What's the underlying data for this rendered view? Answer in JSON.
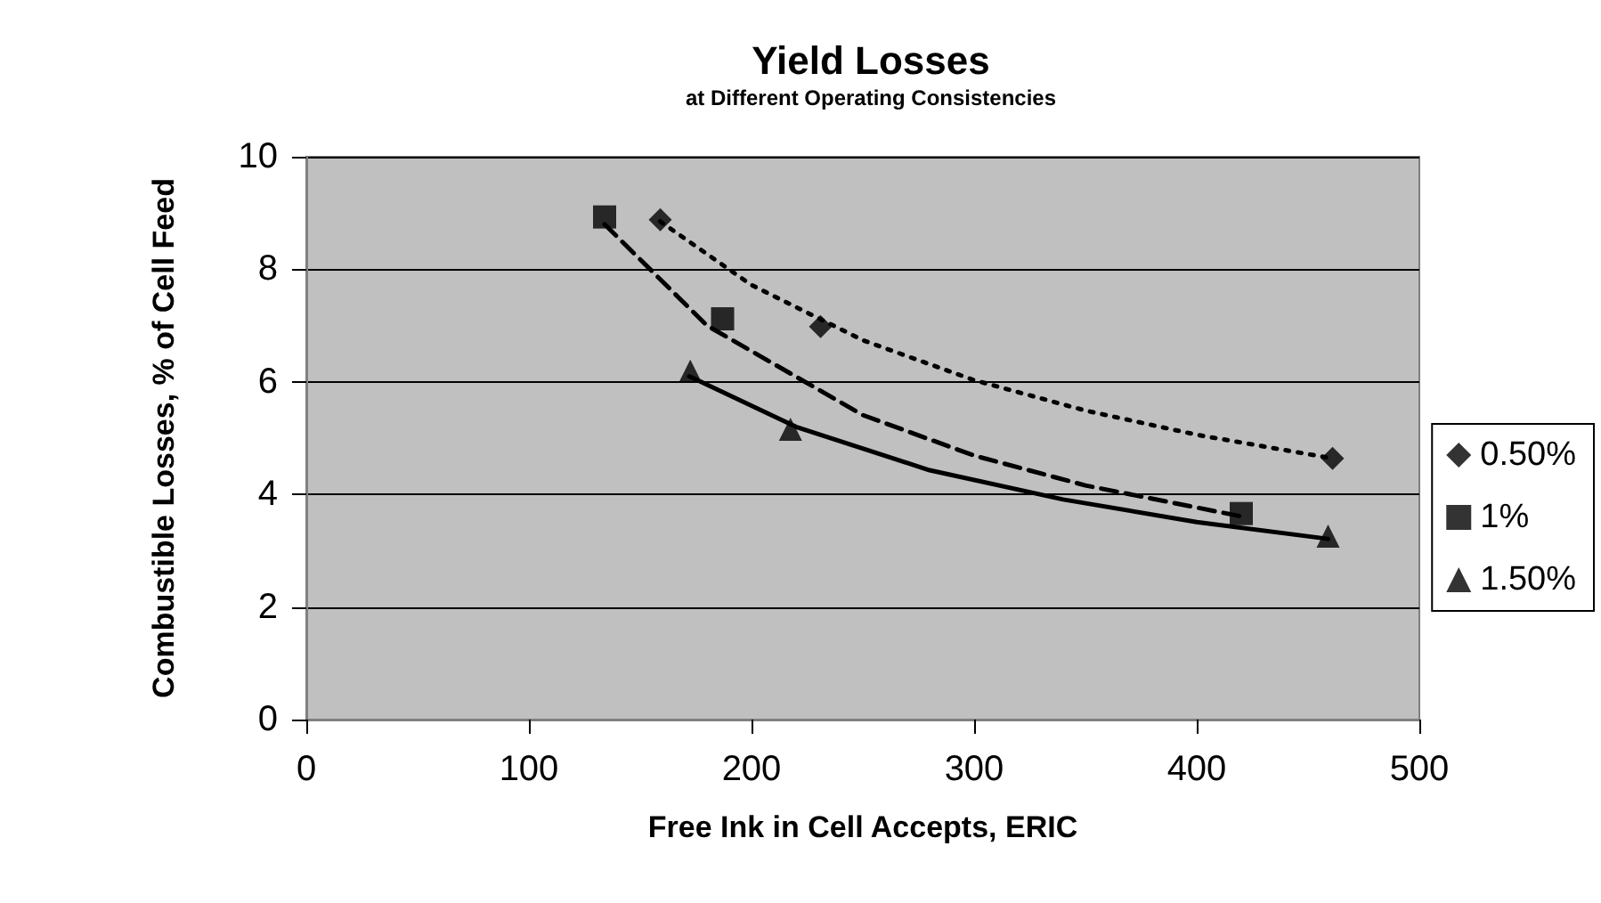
{
  "chart_data": {
    "type": "scatter",
    "title": "Yield Losses",
    "subtitle": "at Different Operating Consistencies",
    "xlabel": "Free Ink in Cell Accepts, ERIC",
    "ylabel": "Combustible Losses, % of Cell Feed",
    "xlim": [
      0,
      500
    ],
    "xticks": [
      0,
      100,
      200,
      300,
      400,
      500
    ],
    "ylim": [
      0,
      10
    ],
    "yticks": [
      0,
      2,
      4,
      6,
      8,
      10
    ],
    "grid": "y",
    "legend": "right",
    "series": [
      {
        "name": "0.50%",
        "marker": "diamond",
        "color": "#000000",
        "x": [
          159,
          231,
          461
        ],
        "values": [
          8.88,
          6.98,
          4.64
        ]
      },
      {
        "name": "1%",
        "marker": "square",
        "color": "#000000",
        "x": [
          134,
          187,
          420
        ],
        "values": [
          8.93,
          7.12,
          3.66
        ]
      },
      {
        "name": "1.50%",
        "marker": "triangle",
        "color": "#000000",
        "x": [
          172.5,
          217.5,
          459
        ],
        "values": [
          6.19,
          5.16,
          3.26
        ]
      },
      {
        "type": "line",
        "line_style": "dotted",
        "marker": "none",
        "color": "#000000",
        "x": [
          159,
          200,
          250,
          300,
          350,
          400,
          461
        ],
        "values": [
          8.85,
          7.72,
          6.74,
          6.03,
          5.49,
          5.06,
          4.64
        ]
      },
      {
        "type": "line",
        "line_style": "dashed",
        "marker": "none",
        "color": "#000000",
        "x": [
          134,
          180,
          250,
          300,
          350,
          420
        ],
        "values": [
          8.8,
          7.0,
          5.41,
          4.69,
          4.16,
          3.61
        ]
      },
      {
        "type": "line",
        "line_style": "solid",
        "marker": "none",
        "color": "#000000",
        "x": [
          172,
          220,
          280,
          340,
          400,
          459
        ],
        "values": [
          6.1,
          5.2,
          4.43,
          3.91,
          3.51,
          3.21
        ]
      }
    ]
  }
}
